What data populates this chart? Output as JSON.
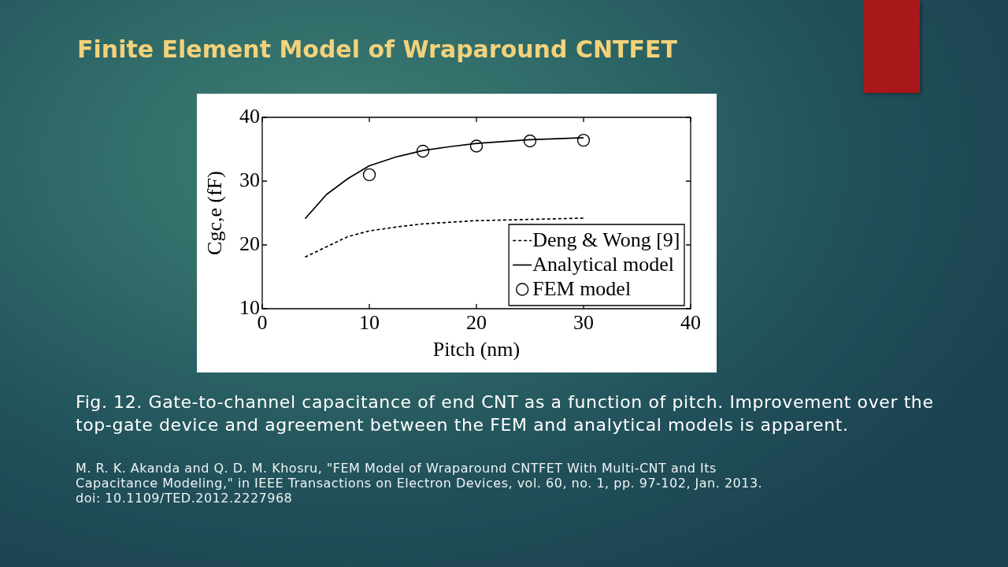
{
  "chart_data": {
    "type": "line",
    "title": "Finite Element Model of Wraparound CNTFET",
    "xlabel": "Pitch (nm)",
    "ylabel": "Cgc,e (fF)",
    "xlim": [
      0,
      40
    ],
    "xticks": [
      0,
      10,
      20,
      30,
      40
    ],
    "ylim": [
      10,
      40
    ],
    "yticks": [
      10,
      20,
      30,
      40
    ],
    "grid": false,
    "legend": "bottom right",
    "series": [
      {
        "name": "Deng & Wong [9]",
        "color": "#000000",
        "line_style": "dashed",
        "marker": "none",
        "x": [
          4,
          6,
          8,
          10,
          12.5,
          15,
          20,
          25,
          30
        ],
        "values": [
          18.1,
          19.7,
          21.3,
          22.2,
          22.8,
          23.3,
          23.8,
          24.0,
          24.2
        ]
      },
      {
        "name": "Analytical model",
        "color": "#000000",
        "line_style": "solid",
        "marker": "none",
        "x": [
          4,
          6,
          8,
          10,
          12.5,
          15,
          17.5,
          20,
          25,
          30
        ],
        "values": [
          24.1,
          27.9,
          30.4,
          32.4,
          33.8,
          34.8,
          35.4,
          35.9,
          36.5,
          36.8
        ]
      },
      {
        "name": "FEM model",
        "type": "scatter",
        "color": "#000000",
        "marker": "circle",
        "x": [
          10,
          15,
          20,
          25,
          30
        ],
        "values": [
          31.0,
          34.7,
          35.5,
          36.3,
          36.4
        ]
      }
    ],
    "annotations": [
      "Fig. 12. Gate-to-channel capacitance of end CNT as a function of pitch. Improvement over the top-gate device and agreement between the FEM and analytical models is apparent.",
      "M. R. K. Akanda and Q. D. M. Khosru, \"FEM Model of Wraparound CNTFET With Multi-CNT and Its Capacitance Modeling,\" in IEEE Transactions on Electron Devices, vol. 60, no. 1, pp. 97-102, Jan. 2013.",
      "doi: 10.1109/TED.2012.2227968"
    ]
  }
}
